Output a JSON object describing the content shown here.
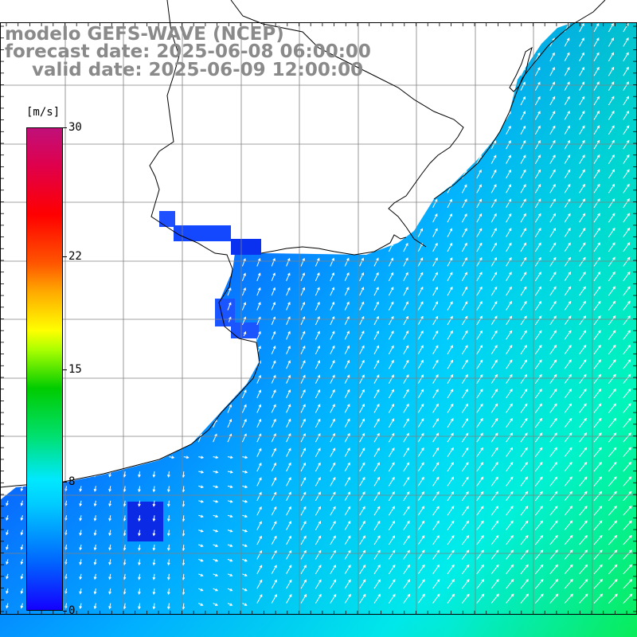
{
  "title": {
    "line1": "modelo GEFS-WAVE (NCEP)",
    "line2": "forecast date: 2025-06-08 06:00:00",
    "line3": "valid date: 2025-06-09 12:00:00"
  },
  "colorbar": {
    "unit": "[m/s]",
    "ticks": [
      {
        "label": "30",
        "value": 30
      },
      {
        "label": "22",
        "value": 22
      },
      {
        "label": "15",
        "value": 15
      },
      {
        "label": "8",
        "value": 8
      },
      {
        "label": "0",
        "value": 0
      }
    ],
    "range": [
      0,
      30
    ]
  },
  "map": {
    "variable": "wind speed and direction",
    "grid_lines": true
  }
}
